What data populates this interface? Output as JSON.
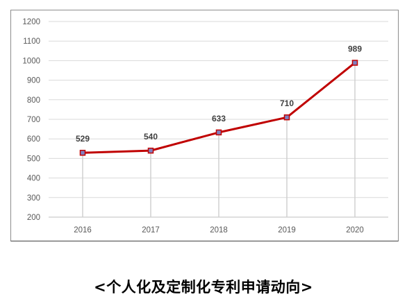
{
  "caption": "<个人化及定制化专利申请动向>",
  "chart_data": {
    "type": "line",
    "title": "",
    "xlabel": "",
    "ylabel": "",
    "categories": [
      "2016",
      "2017",
      "2018",
      "2019",
      "2020"
    ],
    "series": [
      {
        "values": [
          529,
          540,
          633,
          710,
          989
        ],
        "data_labels": [
          "529",
          "540",
          "633",
          "710",
          "989"
        ],
        "color": "#c00000",
        "marker_color": "#7f7fbf",
        "drop_line_color": "#d0d0d0"
      }
    ],
    "ylim": [
      200,
      1200
    ],
    "yticks": [
      200,
      300,
      400,
      500,
      600,
      700,
      800,
      900,
      1000,
      1100,
      1200
    ],
    "ytick_labels": [
      "200",
      "300",
      "400",
      "500",
      "600",
      "700",
      "800",
      "900",
      "1000",
      "1100",
      "1200"
    ],
    "grid": true,
    "legend": "none"
  }
}
